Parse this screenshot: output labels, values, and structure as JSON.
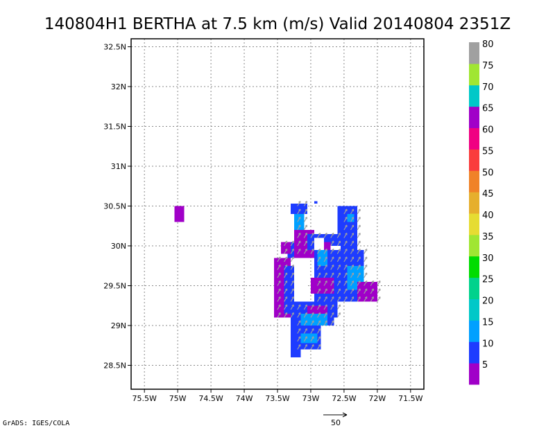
{
  "title": "140804H1 BERTHA at 7.5 km (m/s) Valid 20140804 2351Z",
  "credit": "GrADS: IGES/COLA",
  "chart_data": {
    "type": "heatmap",
    "title": "140804H1 BERTHA at 7.5 km (m/s) Valid 20140804 2351Z",
    "xlabel": "",
    "ylabel": "",
    "xlim": [
      -75.7,
      -71.3
    ],
    "ylim": [
      28.2,
      32.6
    ],
    "grid": true,
    "x_ticks": [
      {
        "value": -75.5,
        "label": "75.5W"
      },
      {
        "value": -75.0,
        "label": "75W"
      },
      {
        "value": -74.5,
        "label": "74.5W"
      },
      {
        "value": -74.0,
        "label": "74W"
      },
      {
        "value": -73.5,
        "label": "73.5W"
      },
      {
        "value": -73.0,
        "label": "73W"
      },
      {
        "value": -72.5,
        "label": "72.5W"
      },
      {
        "value": -72.0,
        "label": "72W"
      },
      {
        "value": -71.5,
        "label": "71.5W"
      }
    ],
    "y_ticks": [
      {
        "value": 28.5,
        "label": "28.5N"
      },
      {
        "value": 29.0,
        "label": "29N"
      },
      {
        "value": 29.5,
        "label": "29.5N"
      },
      {
        "value": 30.0,
        "label": "30N"
      },
      {
        "value": 30.5,
        "label": "30.5N"
      },
      {
        "value": 31.0,
        "label": "31N"
      },
      {
        "value": 31.5,
        "label": "31.5N"
      },
      {
        "value": 32.0,
        "label": "32N"
      },
      {
        "value": 32.5,
        "label": "32.5N"
      }
    ],
    "colorbar": {
      "labels": [
        "5",
        "10",
        "15",
        "20",
        "25",
        "30",
        "35",
        "40",
        "45",
        "50",
        "55",
        "60",
        "65",
        "70",
        "75",
        "80"
      ],
      "colors": [
        "#a000c8",
        "#1e3cff",
        "#00a0ff",
        "#00c8c8",
        "#00d28c",
        "#00dc00",
        "#a0e632",
        "#e6dc32",
        "#e6af2d",
        "#f08228",
        "#fa3c3c",
        "#f00082",
        "#a000c8",
        "#00c8c8",
        "#a0e632",
        "#a0a0a0"
      ]
    },
    "cell_size_deg": 0.05,
    "wind_regions": [
      {
        "lon": [
          -72.95,
          -72.9
        ],
        "lat": [
          30.53,
          30.56
        ],
        "value": 12
      },
      {
        "lon": [
          -73.3,
          -73.05
        ],
        "lat": [
          30.4,
          30.53
        ],
        "value": 12
      },
      {
        "lon": [
          -73.25,
          -73.1
        ],
        "lat": [
          30.05,
          30.4
        ],
        "value": 17
      },
      {
        "lon": [
          -73.35,
          -73.1
        ],
        "lat": [
          29.85,
          30.05
        ],
        "value": 12
      },
      {
        "lon": [
          -73.25,
          -72.95
        ],
        "lat": [
          29.85,
          30.2
        ],
        "value": 7
      },
      {
        "lon": [
          -73.05,
          -72.6
        ],
        "lat": [
          29.95,
          30.15
        ],
        "value": 12
      },
      {
        "lon": [
          -72.6,
          -72.3
        ],
        "lat": [
          29.95,
          30.5
        ],
        "value": 12
      },
      {
        "lon": [
          -72.45,
          -72.35
        ],
        "lat": [
          30.3,
          30.4
        ],
        "value": 17
      },
      {
        "lon": [
          -72.95,
          -72.2
        ],
        "lat": [
          29.3,
          29.95
        ],
        "value": 12
      },
      {
        "lon": [
          -72.9,
          -72.75
        ],
        "lat": [
          29.75,
          29.95
        ],
        "value": 17
      },
      {
        "lon": [
          -72.45,
          -72.2
        ],
        "lat": [
          29.45,
          29.75
        ],
        "value": 17
      },
      {
        "lon": [
          -72.3,
          -72.0
        ],
        "lat": [
          29.3,
          29.55
        ],
        "value": 7
      },
      {
        "lon": [
          -72.8,
          -72.6
        ],
        "lat": [
          29.1,
          29.4
        ],
        "value": 12
      },
      {
        "lon": [
          -73.55,
          -73.3
        ],
        "lat": [
          29.1,
          29.85
        ],
        "value": 7
      },
      {
        "lon": [
          -73.4,
          -73.25
        ],
        "lat": [
          29.15,
          29.75
        ],
        "value": 12
      },
      {
        "lon": [
          -73.3,
          -72.65
        ],
        "lat": [
          29.0,
          29.3
        ],
        "value": 12
      },
      {
        "lon": [
          -73.15,
          -72.75
        ],
        "lat": [
          29.0,
          29.15
        ],
        "value": 17
      },
      {
        "lon": [
          -73.3,
          -72.85
        ],
        "lat": [
          28.7,
          29.0
        ],
        "value": 12
      },
      {
        "lon": [
          -73.15,
          -72.9
        ],
        "lat": [
          28.78,
          28.9
        ],
        "value": 17
      },
      {
        "lon": [
          -73.3,
          -73.15
        ],
        "lat": [
          28.6,
          28.7
        ],
        "value": 12
      },
      {
        "lon": [
          -73.45,
          -73.3
        ],
        "lat": [
          29.9,
          30.05
        ],
        "value": 7
      },
      {
        "lon": [
          -73.0,
          -72.65
        ],
        "lat": [
          29.4,
          29.6
        ],
        "value": 7
      },
      {
        "lon": [
          -73.05,
          -72.75
        ],
        "lat": [
          29.15,
          29.25
        ],
        "value": 7
      },
      {
        "lon": [
          -72.95,
          -72.7
        ],
        "lat": [
          29.95,
          30.05
        ],
        "value": 7
      },
      {
        "lon": [
          -75.05,
          -74.9
        ],
        "lat": [
          30.3,
          30.5
        ],
        "value": 7
      }
    ],
    "calm_gaps": [
      {
        "lon": [
          -73.25,
          -73.05
        ],
        "lat": [
          29.45,
          29.7
        ]
      },
      {
        "lon": [
          -72.7,
          -72.55
        ],
        "lat": [
          29.95,
          30.0
        ]
      },
      {
        "lon": [
          -72.95,
          -72.8
        ],
        "lat": [
          29.95,
          30.1
        ]
      }
    ],
    "vectors": {
      "reference_speed": 50,
      "reference_label": "50",
      "color": "#a0a0a0",
      "direction_deg": 60,
      "speed": 12
    }
  }
}
